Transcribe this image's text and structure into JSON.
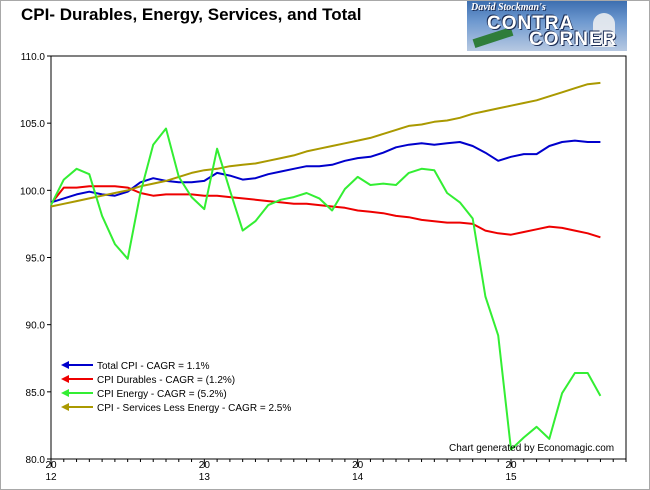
{
  "page": {
    "title": "CPI- Durables, Energy, Services, and Total"
  },
  "logo": {
    "line_top": "David Stockman's",
    "line1": "CONTRA",
    "line2": "CORNER",
    "sign": "WALL"
  },
  "credit": "Chart generated by Economagic.com",
  "chart_data": {
    "type": "line",
    "title": "CPI- Durables, Energy, Services, and Total",
    "xlabel": "",
    "ylabel": "",
    "xlim": [
      "2012-01",
      "2015-09"
    ],
    "ylim": [
      80,
      110
    ],
    "yticks": [
      80,
      85,
      90,
      95,
      100,
      105,
      110
    ],
    "ytick_labels": [
      "80.0",
      "85.0",
      "90.0",
      "95.0",
      "100.0",
      "105.0",
      "110.0"
    ],
    "xticks": [
      "2012-01",
      "2013-01",
      "2014-01",
      "2015-01"
    ],
    "xtick_labels": [
      [
        "20",
        "12"
      ],
      [
        "20",
        "13"
      ],
      [
        "20",
        "14"
      ],
      [
        "20",
        "15"
      ]
    ],
    "grid": false,
    "legend_position": "bottom-left",
    "x": [
      "2012-01",
      "2012-02",
      "2012-03",
      "2012-04",
      "2012-05",
      "2012-06",
      "2012-07",
      "2012-08",
      "2012-09",
      "2012-10",
      "2012-11",
      "2012-12",
      "2013-01",
      "2013-02",
      "2013-03",
      "2013-04",
      "2013-05",
      "2013-06",
      "2013-07",
      "2013-08",
      "2013-09",
      "2013-10",
      "2013-11",
      "2013-12",
      "2014-01",
      "2014-02",
      "2014-03",
      "2014-04",
      "2014-05",
      "2014-06",
      "2014-07",
      "2014-08",
      "2014-09",
      "2014-10",
      "2014-11",
      "2014-12",
      "2015-01",
      "2015-02",
      "2015-03",
      "2015-04",
      "2015-05",
      "2015-06",
      "2015-07",
      "2015-08"
    ],
    "series": [
      {
        "name": "Total CPI  - CAGR = 1.1%",
        "color": "#0000cc",
        "values": [
          99.1,
          99.4,
          99.7,
          99.9,
          99.7,
          99.6,
          99.9,
          100.6,
          100.9,
          100.7,
          100.6,
          100.6,
          100.7,
          101.3,
          101.1,
          100.8,
          100.9,
          101.2,
          101.4,
          101.6,
          101.8,
          101.8,
          101.9,
          102.2,
          102.4,
          102.5,
          102.8,
          103.2,
          103.4,
          103.5,
          103.4,
          103.5,
          103.6,
          103.3,
          102.8,
          102.2,
          102.5,
          102.7,
          102.7,
          103.3,
          103.6,
          103.7,
          103.6,
          103.6
        ]
      },
      {
        "name": "CPI Durables - CAGR = (1.2%)",
        "color": "#ee0000",
        "values": [
          99.0,
          100.2,
          100.2,
          100.3,
          100.3,
          100.3,
          100.2,
          99.8,
          99.6,
          99.7,
          99.7,
          99.7,
          99.6,
          99.6,
          99.5,
          99.4,
          99.3,
          99.2,
          99.1,
          99.0,
          99.0,
          98.9,
          98.8,
          98.7,
          98.5,
          98.4,
          98.3,
          98.1,
          98.0,
          97.8,
          97.7,
          97.6,
          97.6,
          97.5,
          97.0,
          96.8,
          96.7,
          96.9,
          97.1,
          97.3,
          97.2,
          97.0,
          96.8,
          96.5
        ]
      },
      {
        "name": "CPI Energy - CAGR = (5.2%)",
        "color": "#33ee33",
        "values": [
          98.9,
          100.8,
          101.6,
          101.2,
          98.1,
          96.0,
          94.9,
          99.8,
          103.4,
          104.6,
          101.0,
          99.5,
          98.6,
          103.1,
          100.0,
          97.0,
          97.7,
          98.9,
          99.3,
          99.5,
          99.8,
          99.4,
          98.5,
          100.1,
          101.0,
          100.4,
          100.5,
          100.4,
          101.3,
          101.6,
          101.5,
          99.8,
          99.1,
          97.9,
          92.1,
          89.2,
          80.7,
          81.6,
          82.4,
          81.5,
          84.9,
          86.4,
          86.4,
          84.7
        ]
      },
      {
        "name": "CPI - Services Less Energy - CAGR = 2.5%",
        "color": "#aa9900",
        "values": [
          98.8,
          99.0,
          99.2,
          99.4,
          99.6,
          99.8,
          100.0,
          100.3,
          100.5,
          100.7,
          101.0,
          101.3,
          101.5,
          101.6,
          101.8,
          101.9,
          102.0,
          102.2,
          102.4,
          102.6,
          102.9,
          103.1,
          103.3,
          103.5,
          103.7,
          103.9,
          104.2,
          104.5,
          104.8,
          104.9,
          105.1,
          105.2,
          105.4,
          105.7,
          105.9,
          106.1,
          106.3,
          106.5,
          106.7,
          107.0,
          107.3,
          107.6,
          107.9,
          108.0
        ]
      }
    ]
  }
}
